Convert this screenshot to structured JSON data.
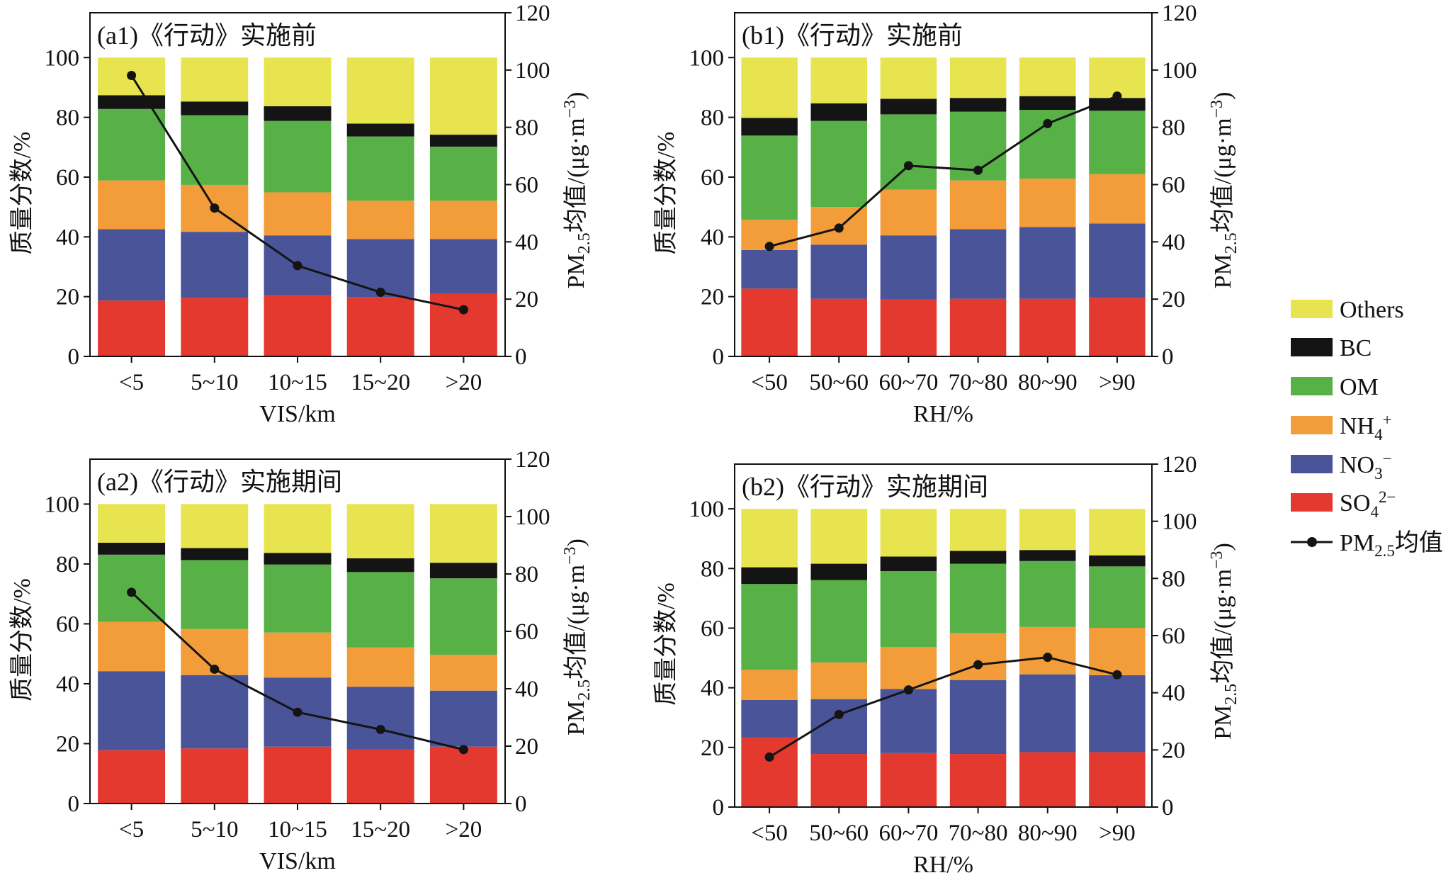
{
  "legend": {
    "placement": "right",
    "items": [
      {
        "text": "Others",
        "color": "#e8e44f"
      },
      {
        "text": "BC",
        "color": "#141414"
      },
      {
        "text": "OM",
        "color": "#58b146"
      },
      {
        "text": "NH",
        "sub": "4",
        "sup": "+",
        "color": "#f39c3a"
      },
      {
        "text": "NO",
        "sub": "3",
        "sup": "−",
        "color": "#4a5498"
      },
      {
        "text": "SO",
        "sub": "4",
        "sup": "2−",
        "color": "#e4392f"
      }
    ],
    "line": {
      "text": "PM",
      "sub": "2.5",
      "rest": "均值",
      "color": "#141414"
    }
  },
  "chart_data": [
    {
      "type": "bar",
      "stacked": true,
      "title": "(a1)《行动》实施前",
      "xlabel": "VIS/km",
      "ylabel": "质量分数/%",
      "y2label": {
        "text": "PM",
        "sub": "2.5",
        "mid": "均值/(μg·m",
        "sup": "−3",
        "end": ")"
      },
      "ylim": [
        0,
        115
      ],
      "yticks": [
        0,
        20,
        40,
        60,
        80,
        100
      ],
      "y2lim": [
        0,
        120
      ],
      "y2ticks": [
        0,
        20,
        40,
        60,
        80,
        100,
        120
      ],
      "grid": false,
      "categories": [
        "<5",
        "5~10",
        "10~15",
        "15~20",
        ">20"
      ],
      "series": [
        {
          "legend_item": 5,
          "values": [
            18.7,
            19.6,
            20.5,
            19.9,
            20.9
          ]
        },
        {
          "legend_item": 4,
          "values": [
            23.9,
            22.1,
            20.0,
            19.4,
            18.4
          ]
        },
        {
          "legend_item": 3,
          "values": [
            16.3,
            15.7,
            14.4,
            12.8,
            12.8
          ]
        },
        {
          "legend_item": 2,
          "values": [
            23.9,
            23.3,
            23.9,
            21.5,
            18.1
          ]
        },
        {
          "legend_item": 1,
          "values": [
            4.6,
            4.6,
            4.9,
            4.3,
            4.0
          ]
        },
        {
          "legend_item": 0,
          "values": [
            12.6,
            14.7,
            16.3,
            22.1,
            25.8
          ]
        }
      ],
      "line": {
        "values": [
          98.1,
          51.8,
          31.7,
          22.4,
          16.3
        ]
      }
    },
    {
      "type": "bar",
      "stacked": true,
      "title": "(b1)《行动》实施前",
      "xlabel": "RH/%",
      "ylabel": "质量分数/%",
      "y2label": {
        "text": "PM",
        "sub": "2.5",
        "mid": "均值/(μg·m",
        "sup": "−3",
        "end": ")"
      },
      "ylim": [
        0,
        115
      ],
      "yticks": [
        0,
        20,
        40,
        60,
        80,
        100
      ],
      "y2lim": [
        0,
        120
      ],
      "y2ticks": [
        0,
        20,
        40,
        60,
        80,
        100,
        120
      ],
      "grid": false,
      "categories": [
        "<50",
        "50~60",
        "60~70",
        "70~80",
        "80~90",
        ">90"
      ],
      "series": [
        {
          "legend_item": 5,
          "values": [
            22.7,
            19.3,
            19.0,
            19.3,
            19.3,
            19.6
          ]
        },
        {
          "legend_item": 4,
          "values": [
            12.9,
            18.1,
            21.5,
            23.3,
            24.0,
            24.9
          ]
        },
        {
          "legend_item": 3,
          "values": [
            10.1,
            12.6,
            15.3,
            16.3,
            16.2,
            16.5
          ]
        },
        {
          "legend_item": 2,
          "values": [
            28.2,
            28.8,
            25.2,
            23.0,
            23.0,
            21.2
          ]
        },
        {
          "legend_item": 1,
          "values": [
            5.9,
            5.9,
            5.2,
            4.6,
            4.6,
            4.3
          ]
        },
        {
          "legend_item": 0,
          "values": [
            20.2,
            15.3,
            13.8,
            13.5,
            12.9,
            13.5
          ]
        }
      ],
      "line": {
        "values": [
          38.4,
          44.8,
          66.6,
          65.0,
          81.3,
          90.9
        ]
      }
    },
    {
      "type": "bar",
      "stacked": true,
      "title": "(a2)《行动》实施期间",
      "xlabel": "VIS/km",
      "ylabel": "质量分数/%",
      "y2label": {
        "text": "PM",
        "sub": "2.5",
        "mid": "均值/(μg·m",
        "sup": "−3",
        "end": ")"
      },
      "ylim": [
        0,
        115
      ],
      "yticks": [
        0,
        20,
        40,
        60,
        80,
        100
      ],
      "y2lim": [
        0,
        120
      ],
      "y2ticks": [
        0,
        20,
        40,
        60,
        80,
        100,
        120
      ],
      "grid": false,
      "categories": [
        "<5",
        "5~10",
        "10~15",
        "15~20",
        ">20"
      ],
      "series": [
        {
          "legend_item": 5,
          "values": [
            17.8,
            18.4,
            19.0,
            18.1,
            19.0
          ]
        },
        {
          "legend_item": 4,
          "values": [
            26.4,
            24.5,
            23.0,
            20.9,
            18.7
          ]
        },
        {
          "legend_item": 3,
          "values": [
            16.5,
            15.4,
            15.1,
            13.1,
            12.0
          ]
        },
        {
          "legend_item": 2,
          "values": [
            22.4,
            23.0,
            22.7,
            25.2,
            25.5
          ]
        },
        {
          "legend_item": 1,
          "values": [
            4.0,
            4.0,
            3.9,
            4.6,
            5.2
          ]
        },
        {
          "legend_item": 0,
          "values": [
            12.9,
            14.7,
            16.3,
            18.1,
            19.6
          ]
        }
      ],
      "line": {
        "values": [
          73.6,
          46.8,
          31.8,
          25.8,
          18.8
        ]
      }
    },
    {
      "type": "bar",
      "stacked": true,
      "title": "(b2)《行动》实施期间",
      "xlabel": "RH/%",
      "ylabel": "质量分数/%",
      "y2label": {
        "text": "PM",
        "sub": "2.5",
        "mid": "均值/(μg·m",
        "sup": "−3",
        "end": ")"
      },
      "ylim": [
        0,
        115
      ],
      "yticks": [
        0,
        20,
        40,
        60,
        80,
        100
      ],
      "y2lim": [
        0,
        120
      ],
      "y2ticks": [
        0,
        20,
        40,
        60,
        80,
        100,
        120
      ],
      "grid": false,
      "categories": [
        "<50",
        "50~60",
        "60~70",
        "70~80",
        "80~90",
        ">90"
      ],
      "series": [
        {
          "legend_item": 5,
          "values": [
            23.3,
            17.8,
            18.1,
            17.8,
            18.4,
            18.4
          ]
        },
        {
          "legend_item": 4,
          "values": [
            12.6,
            18.4,
            21.5,
            24.8,
            26.1,
            25.8
          ]
        },
        {
          "legend_item": 3,
          "values": [
            10.1,
            12.3,
            14.1,
            15.7,
            15.9,
            15.9
          ]
        },
        {
          "legend_item": 2,
          "values": [
            28.8,
            27.6,
            25.4,
            23.3,
            22.1,
            20.6
          ]
        },
        {
          "legend_item": 1,
          "values": [
            5.6,
            5.5,
            4.9,
            4.3,
            3.7,
            3.7
          ]
        },
        {
          "legend_item": 0,
          "values": [
            19.6,
            18.4,
            16.0,
            14.1,
            13.8,
            15.6
          ]
        }
      ],
      "line": {
        "values": [
          17.5,
          32.4,
          41.0,
          49.8,
          52.4,
          46.3
        ]
      }
    }
  ]
}
